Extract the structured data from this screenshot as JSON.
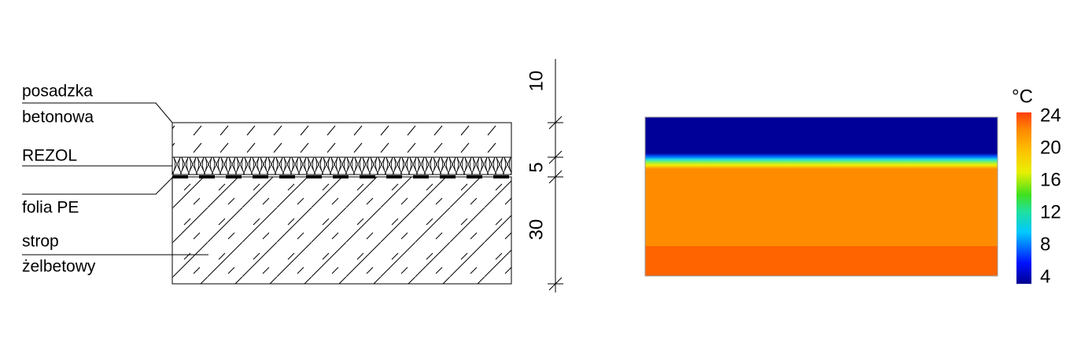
{
  "layers": [
    {
      "label": [
        "posadzka",
        "betonowa"
      ]
    },
    {
      "label": [
        "REZOL"
      ]
    },
    {
      "label": [
        "folia PE"
      ]
    },
    {
      "label": [
        "strop",
        "żelbetowy"
      ]
    }
  ],
  "dimensions": [
    "10",
    "5",
    "30"
  ],
  "colorbar": {
    "unit": "°C",
    "ticks": [
      4,
      8,
      12,
      16,
      20,
      24
    ]
  }
}
